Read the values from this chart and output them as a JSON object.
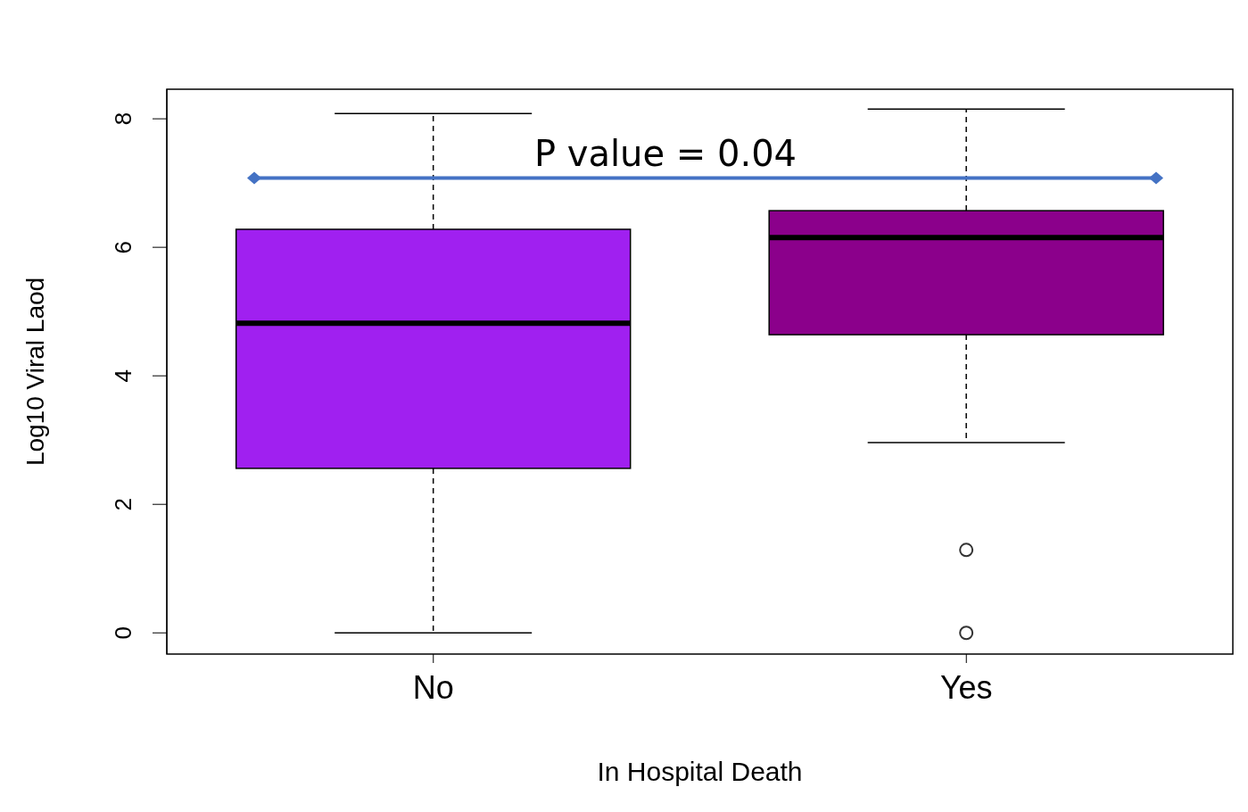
{
  "chart_data": {
    "type": "box",
    "xlabel": "In Hospital Death",
    "ylabel": "Log10 Viral Laod",
    "categories": [
      "No",
      "Yes"
    ],
    "colors": [
      "#a020f0",
      "#8b008b"
    ],
    "boxes": [
      {
        "low": 0,
        "q1": 2.56,
        "median": 4.82,
        "q3": 6.28,
        "high": 8.08
      },
      {
        "low": 2.96,
        "q1": 4.64,
        "median": 6.15,
        "q3": 6.57,
        "high": 8.15,
        "outliers": [
          1.29,
          0
        ]
      }
    ],
    "ylim": [
      -0.33,
      8.46
    ],
    "yticks": [
      0,
      2,
      4,
      6,
      8
    ],
    "grid": false,
    "annotations": [
      "P value = 0.04"
    ],
    "ref_lines": [
      {
        "axis": "y",
        "value": 7.08,
        "color": "#4472c4"
      }
    ]
  }
}
